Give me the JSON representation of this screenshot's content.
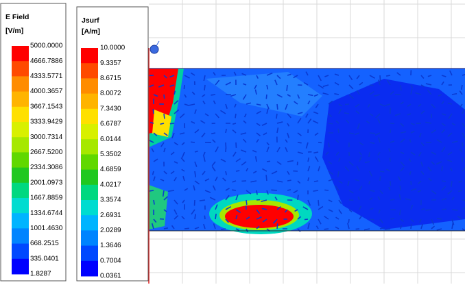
{
  "legends": [
    {
      "title": [
        "E Field",
        "[V/m]"
      ],
      "labels": [
        "5000.0000",
        "4666.7886",
        "4333.5771",
        "4000.3657",
        "3667.1543",
        "3333.9429",
        "3000.7314",
        "2667.5200",
        "2334.3086",
        "2001.0973",
        "1667.8859",
        "1334.6744",
        "1001.4630",
        "668.2515",
        "335.0401",
        "1.8287"
      ]
    },
    {
      "title": [
        "Jsurf",
        "[A/m]"
      ],
      "labels": [
        "10.0000",
        "9.3357",
        "8.6715",
        "8.0072",
        "7.3430",
        "6.6787",
        "6.0144",
        "5.3502",
        "4.6859",
        "4.0217",
        "3.3574",
        "2.6931",
        "2.0289",
        "1.3646",
        "0.7004",
        "0.0361"
      ]
    }
  ],
  "colors": [
    "#ff0000",
    "#ff4a00",
    "#ff8c00",
    "#ffb400",
    "#ffe000",
    "#d8f000",
    "#a6e800",
    "#60d800",
    "#20c820",
    "#00d880",
    "#00dcd0",
    "#00b4ff",
    "#0084ff",
    "#0048ff",
    "#0000ff"
  ]
}
